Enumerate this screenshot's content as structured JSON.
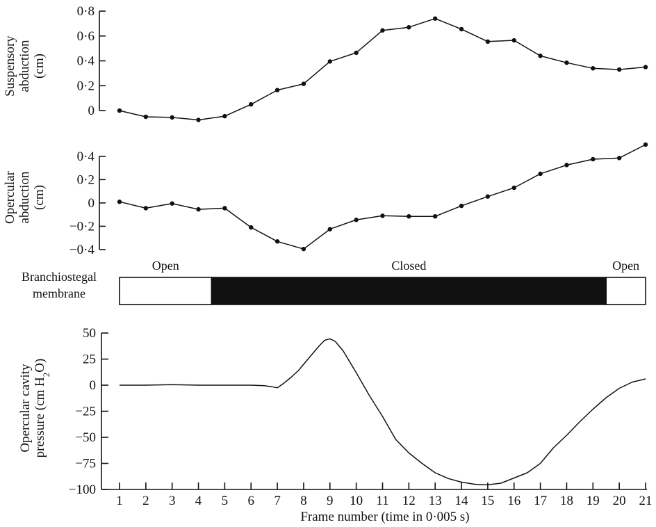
{
  "chart_data": [
    {
      "type": "line",
      "ylabel": [
        "Suspensory",
        "abduction",
        "(cm)"
      ],
      "ylim": [
        -0.05,
        0.8
      ],
      "yticks": [
        0,
        0.2,
        0.4,
        0.6,
        0.8
      ],
      "ytick_labels": [
        "0",
        "0·2",
        "0·4",
        "0·6",
        "0·8"
      ],
      "markers": true,
      "x": [
        1,
        2,
        3,
        4,
        5,
        6,
        7,
        8,
        9,
        10,
        11,
        12,
        13,
        14,
        15,
        16,
        17,
        18,
        19,
        20,
        21
      ],
      "values": [
        0.0,
        -0.05,
        -0.055,
        -0.075,
        -0.045,
        0.05,
        0.165,
        0.215,
        0.395,
        0.465,
        0.645,
        0.67,
        0.74,
        0.655,
        0.555,
        0.565,
        0.44,
        0.385,
        0.34,
        0.33,
        0.35
      ]
    },
    {
      "type": "line",
      "ylabel": [
        "Opercular",
        "abduction",
        "(cm)"
      ],
      "ylim": [
        -0.4,
        0.5
      ],
      "yticks": [
        -0.4,
        -0.2,
        0,
        0.2,
        0.4
      ],
      "ytick_labels": [
        "−0·4",
        "−0·2",
        "0",
        "0·2",
        "0·4"
      ],
      "markers": true,
      "x": [
        1,
        2,
        3,
        4,
        5,
        6,
        7,
        8,
        9,
        10,
        11,
        12,
        13,
        14,
        15,
        16,
        17,
        18,
        19,
        20,
        21
      ],
      "values": [
        0.01,
        -0.045,
        -0.005,
        -0.055,
        -0.045,
        -0.21,
        -0.33,
        -0.395,
        -0.225,
        -0.145,
        -0.11,
        -0.115,
        -0.115,
        -0.025,
        0.055,
        0.13,
        0.25,
        0.325,
        0.375,
        0.385,
        0.5
      ]
    },
    {
      "type": "band",
      "label": [
        "Branchiostegal",
        "membrane"
      ],
      "segments": [
        {
          "state": "Open",
          "from": 1,
          "to": 4.5,
          "filled": false
        },
        {
          "state": "Closed",
          "from": 4.5,
          "to": 19.5,
          "filled": true
        },
        {
          "state": "Open",
          "from": 19.5,
          "to": 21,
          "filled": false
        }
      ]
    },
    {
      "type": "line",
      "ylabel_line1": "Opercular cavity",
      "ylabel_line2_pre": "pressure (cm H",
      "ylabel_line2_sub": "2",
      "ylabel_line2_post": "O)",
      "ylim": [
        -100,
        50
      ],
      "yticks": [
        -100,
        -75,
        -50,
        -25,
        0,
        25,
        50
      ],
      "ytick_labels": [
        "−100",
        "−75",
        "−50",
        "−25",
        "0",
        "25",
        "50"
      ],
      "markers": false,
      "x": [
        1,
        2,
        3,
        4,
        5,
        6,
        6.5,
        6.8,
        7,
        7.2,
        7.5,
        7.8,
        8,
        8.3,
        8.6,
        8.8,
        9,
        9.2,
        9.5,
        10,
        10.5,
        11,
        11.5,
        12,
        12.5,
        13,
        13.5,
        14,
        14.5,
        14.8,
        15,
        15.5,
        16,
        16.5,
        17,
        17.5,
        18,
        18.5,
        19,
        19.5,
        20,
        20.5,
        21
      ],
      "values": [
        0,
        0,
        0.5,
        0,
        0,
        0,
        -0.5,
        -1.5,
        -2.5,
        1,
        7,
        14,
        20,
        29,
        38,
        43,
        44.5,
        42,
        33,
        12,
        -10,
        -30,
        -52,
        -65,
        -75,
        -84,
        -89.5,
        -93,
        -95,
        -95.5,
        -95.5,
        -94,
        -89,
        -84,
        -75,
        -60,
        -48,
        -35,
        -23,
        -12,
        -3,
        3,
        6
      ]
    }
  ],
  "x_axis": {
    "ticks": [
      1,
      2,
      3,
      4,
      5,
      6,
      7,
      8,
      9,
      10,
      11,
      12,
      13,
      14,
      15,
      16,
      17,
      18,
      19,
      20,
      21
    ],
    "tick_labels": [
      "1",
      "2",
      "3",
      "4",
      "5",
      "6",
      "7",
      "8",
      "9",
      "10",
      "11",
      "12",
      "13",
      "14",
      "15",
      "16",
      "17",
      "18",
      "19",
      "20",
      "21"
    ],
    "title": "Frame number (time in 0·005 s)"
  }
}
